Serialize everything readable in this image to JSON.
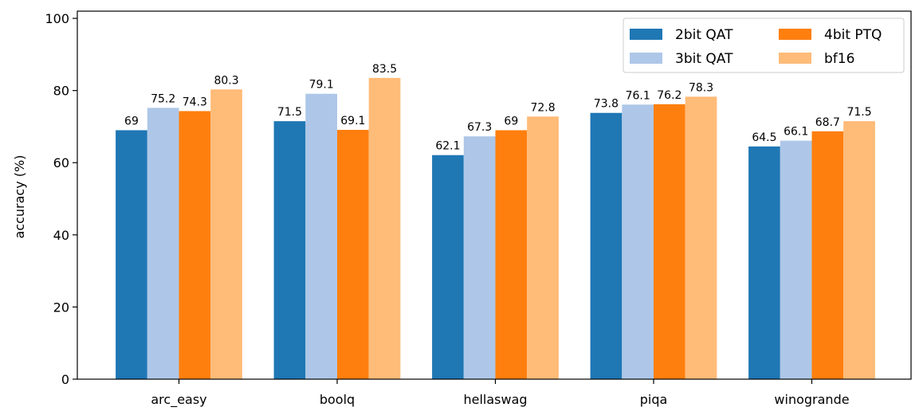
{
  "chart_data": {
    "type": "bar",
    "title": "",
    "xlabel": "",
    "ylabel": "accuracy (%)",
    "ylim": [
      0,
      102
    ],
    "yticks": [
      0,
      20,
      40,
      60,
      80,
      100
    ],
    "grid": false,
    "legend_position": "top-right",
    "categories": [
      "arc_easy",
      "boolq",
      "hellaswag",
      "piqa",
      "winogrande"
    ],
    "series": [
      {
        "name": "2bit QAT",
        "color": "#1f77b4",
        "values": [
          69,
          71.5,
          62.1,
          73.8,
          64.5
        ]
      },
      {
        "name": "3bit QAT",
        "color": "#aec7e8",
        "values": [
          75.2,
          79.1,
          67.3,
          76.1,
          66.1
        ]
      },
      {
        "name": "4bit PTQ",
        "color": "#ff7f0e",
        "values": [
          74.3,
          69.1,
          69,
          76.2,
          68.7
        ]
      },
      {
        "name": "bf16",
        "color": "#ffbb78",
        "values": [
          80.3,
          83.5,
          72.8,
          78.3,
          71.5
        ]
      }
    ]
  }
}
